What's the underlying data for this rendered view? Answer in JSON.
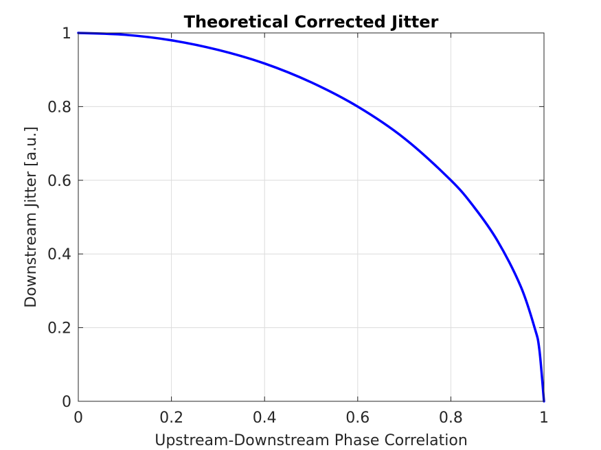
{
  "chart_data": {
    "type": "line",
    "title": "Theoretical Corrected Jitter",
    "xlabel": "Upstream-Downstream Phase Correlation",
    "ylabel": "Downstream Jitter [a.u.]",
    "xlim": [
      0,
      1
    ],
    "ylim": [
      0,
      1
    ],
    "grid": true,
    "legend": "none",
    "x_ticks": [
      "0",
      "0.2",
      "0.4",
      "0.6",
      "0.8",
      "1"
    ],
    "y_ticks": [
      "0",
      "0.2",
      "0.4",
      "0.6",
      "0.8",
      "1"
    ],
    "series": [
      {
        "color": "#0000ff",
        "x": [
          0,
          0.1,
          0.2,
          0.3,
          0.4,
          0.5,
          0.6,
          0.7,
          0.8,
          0.85,
          0.9,
          0.95,
          0.98,
          0.99,
          1.0
        ],
        "y": [
          1.0,
          0.995,
          0.98,
          0.954,
          0.917,
          0.866,
          0.8,
          0.714,
          0.6,
          0.527,
          0.436,
          0.312,
          0.199,
          0.141,
          0.0
        ]
      }
    ]
  }
}
